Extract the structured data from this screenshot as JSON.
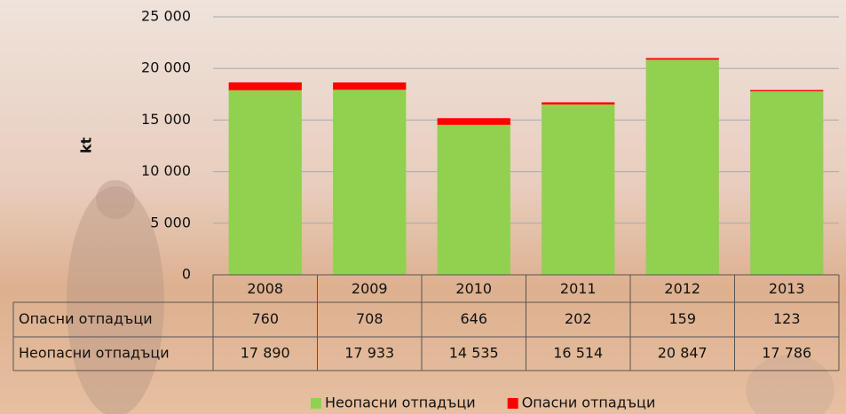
{
  "chart_data": {
    "type": "bar",
    "stacked": true,
    "y_label": "kt",
    "categories": [
      "2008",
      "2009",
      "2010",
      "2011",
      "2012",
      "2013"
    ],
    "series": [
      {
        "name": "Неопасни отпадъци",
        "color": "#92d050",
        "values": [
          17890,
          17933,
          14535,
          16514,
          20847,
          17786
        ],
        "value_labels": [
          "17 890",
          "17 933",
          "14 535",
          "16 514",
          "20 847",
          "17 786"
        ]
      },
      {
        "name": "Опасни отпадъци",
        "color": "#ff0000",
        "values": [
          760,
          708,
          646,
          202,
          159,
          123
        ]
      }
    ],
    "ylim": [
      0,
      25000
    ],
    "yticks": [
      0,
      {
        "value": 5000,
        "label": "5 000"
      },
      {
        "value": 10000,
        "label": "10 000"
      },
      {
        "value": 15000,
        "label": "15 000"
      },
      {
        "value": 20000,
        "label": "20 000"
      },
      {
        "value": 25000,
        "label": "25 000"
      }
    ],
    "grid": true,
    "legend": "bottom",
    "data_table": true
  }
}
